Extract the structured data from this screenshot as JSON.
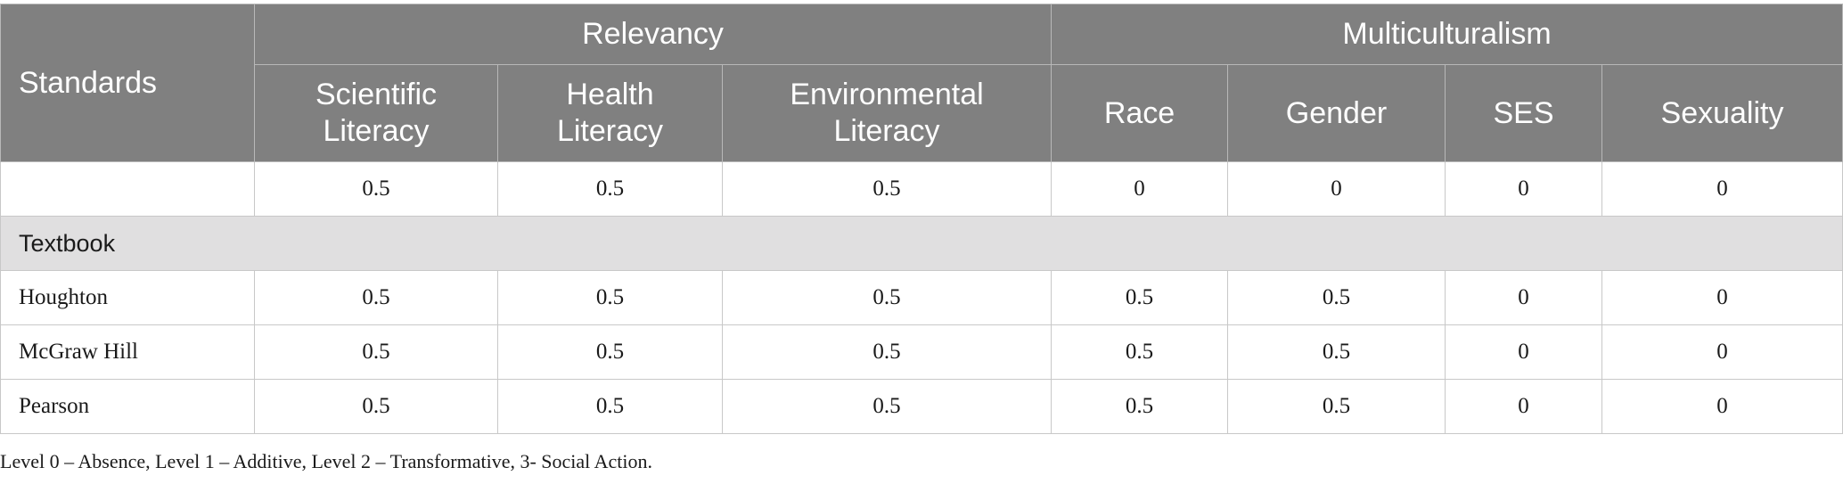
{
  "header": {
    "standards": "Standards",
    "groups": [
      "Relevancy",
      "Multiculturalism"
    ],
    "columns": [
      "Scientific Literacy",
      "Health Literacy",
      "Environmental Literacy",
      "Race",
      "Gender",
      "SES",
      "Sexuality"
    ]
  },
  "rows": [
    {
      "label": "",
      "values": [
        "0.5",
        "0.5",
        "0.5",
        "0",
        "0",
        "0",
        "0"
      ]
    }
  ],
  "section": {
    "label": "Textbook"
  },
  "textbook_rows": [
    {
      "label": "Houghton",
      "values": [
        "0.5",
        "0.5",
        "0.5",
        "0.5",
        "0.5",
        "0",
        "0"
      ]
    },
    {
      "label": "McGraw Hill",
      "values": [
        "0.5",
        "0.5",
        "0.5",
        "0.5",
        "0.5",
        "0",
        "0"
      ]
    },
    {
      "label": "Pearson",
      "values": [
        "0.5",
        "0.5",
        "0.5",
        "0.5",
        "0.5",
        "0",
        "0"
      ]
    }
  ],
  "footnote": "Level 0 – Absence, Level 1 – Additive, Level 2 – Transformative, 3- Social Action."
}
